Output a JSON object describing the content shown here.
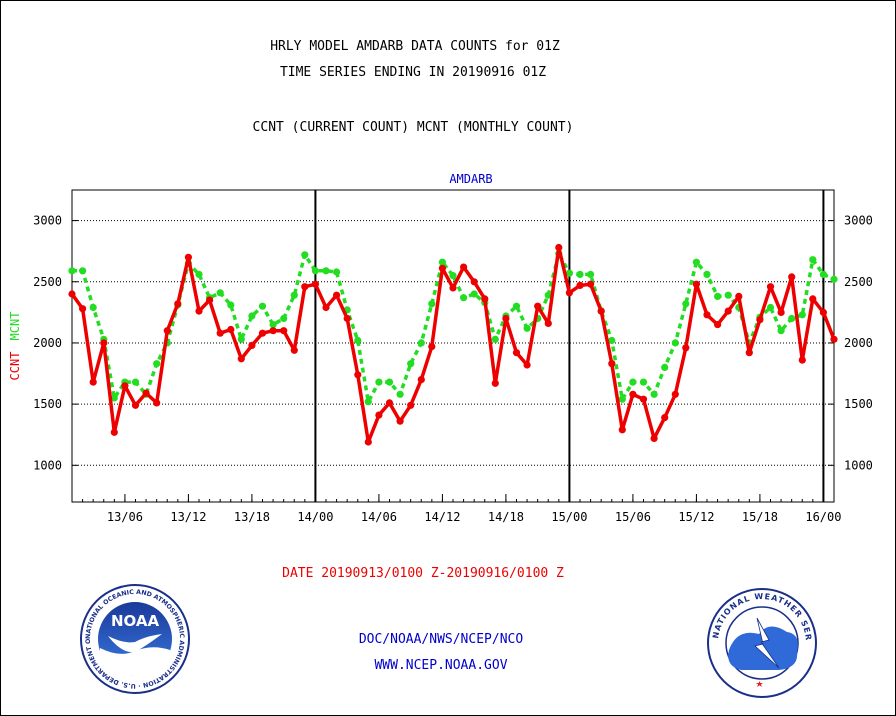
{
  "header": {
    "title_line1": "HRLY MODEL AMDARB DATA COUNTS for 01Z",
    "title_line2": "TIME SERIES ENDING IN 20190916 01Z",
    "subtitle": "CCNT (CURRENT COUNT) MCNT (MONTHLY COUNT)"
  },
  "footer": {
    "date_range": "DATE 20190913/0100 Z-20190916/0100 Z",
    "org_path": "DOC/NOAA/NWS/NCEP/NCO",
    "website": "WWW.NCEP.NOAA.GOV"
  },
  "logos": {
    "noaa_text": "NOAA",
    "noaa_ring_text": "NATIONAL OCEANIC AND ATMOSPHERIC ADMINISTRATION · U.S. DEPARTMENT OF COMMERCE ·",
    "nws_ring_text": "NATIONAL WEATHER SERVICE"
  },
  "colors": {
    "ccnt": "#ee0000",
    "mcnt": "#22dd22",
    "label_blue": "#0000cc",
    "axis": "#000000"
  },
  "chart_data": {
    "type": "line",
    "title": "AMDARB",
    "ylabel_left": [
      "CCNT",
      "MCNT"
    ],
    "ylim": [
      700,
      3250
    ],
    "yticks": [
      1000,
      1500,
      2000,
      2500,
      3000
    ],
    "xticks": [
      "13/06",
      "13/12",
      "13/18",
      "14/00",
      "14/06",
      "14/12",
      "14/18",
      "15/00",
      "15/06",
      "15/12",
      "15/18",
      "16/00"
    ],
    "day_boundaries": [
      "14/00",
      "15/00",
      "16/00"
    ],
    "grid": "horizontal dotted",
    "x": [
      "13/01",
      "13/02",
      "13/03",
      "13/04",
      "13/05",
      "13/06",
      "13/07",
      "13/08",
      "13/09",
      "13/10",
      "13/11",
      "13/12",
      "13/13",
      "13/14",
      "13/15",
      "13/16",
      "13/17",
      "13/18",
      "13/19",
      "13/20",
      "13/21",
      "13/22",
      "13/23",
      "14/00",
      "14/01",
      "14/02",
      "14/03",
      "14/04",
      "14/05",
      "14/06",
      "14/07",
      "14/08",
      "14/09",
      "14/10",
      "14/11",
      "14/12",
      "14/13",
      "14/14",
      "14/15",
      "14/16",
      "14/17",
      "14/18",
      "14/19",
      "14/20",
      "14/21",
      "14/22",
      "14/23",
      "15/00",
      "15/01",
      "15/02",
      "15/03",
      "15/04",
      "15/05",
      "15/06",
      "15/07",
      "15/08",
      "15/09",
      "15/10",
      "15/11",
      "15/12",
      "15/13",
      "15/14",
      "15/15",
      "15/16",
      "15/17",
      "15/18",
      "15/19",
      "15/20",
      "15/21",
      "15/22",
      "15/23",
      "16/00",
      "16/01"
    ],
    "series": [
      {
        "name": "CCNT",
        "color": "#ee0000",
        "style": "solid",
        "values": [
          2400,
          2280,
          1680,
          2000,
          1270,
          1650,
          1490,
          1590,
          1510,
          2100,
          2320,
          2700,
          2260,
          2350,
          2080,
          2110,
          1870,
          1980,
          2080,
          2100,
          2100,
          1940,
          2460,
          2480,
          2290,
          2390,
          2200,
          1740,
          1190,
          1410,
          1510,
          1360,
          1490,
          1700,
          1970,
          2610,
          2450,
          2620,
          2500,
          2360,
          1670,
          2200,
          1920,
          1820,
          2300,
          2160,
          2780,
          2410,
          2470,
          2480,
          2260,
          1830,
          1290,
          1580,
          1540,
          1220,
          1390,
          1580,
          1960,
          2480,
          2230,
          2150,
          2260,
          2380,
          1920,
          2190,
          2460,
          2250,
          2540,
          1860,
          2360,
          2250,
          2030
        ]
      },
      {
        "name": "MCNT",
        "color": "#22dd22",
        "style": "dashed",
        "values": [
          2590,
          2590,
          2290,
          2030,
          1550,
          1680,
          1680,
          1580,
          1830,
          2000,
          2310,
          2650,
          2560,
          2370,
          2410,
          2310,
          2030,
          2220,
          2300,
          2150,
          2200,
          2390,
          2720,
          2590,
          2590,
          2580,
          2270,
          2020,
          1520,
          1680,
          1680,
          1580,
          1830,
          2000,
          2320,
          2660,
          2550,
          2370,
          2400,
          2330,
          2030,
          2220,
          2300,
          2120,
          2200,
          2390,
          2730,
          2570,
          2560,
          2560,
          2260,
          2020,
          1540,
          1680,
          1680,
          1580,
          1800,
          2000,
          2320,
          2660,
          2560,
          2380,
          2390,
          2290,
          2000,
          2210,
          2290,
          2100,
          2200,
          2230,
          2680,
          2560,
          2520
        ]
      }
    ]
  }
}
